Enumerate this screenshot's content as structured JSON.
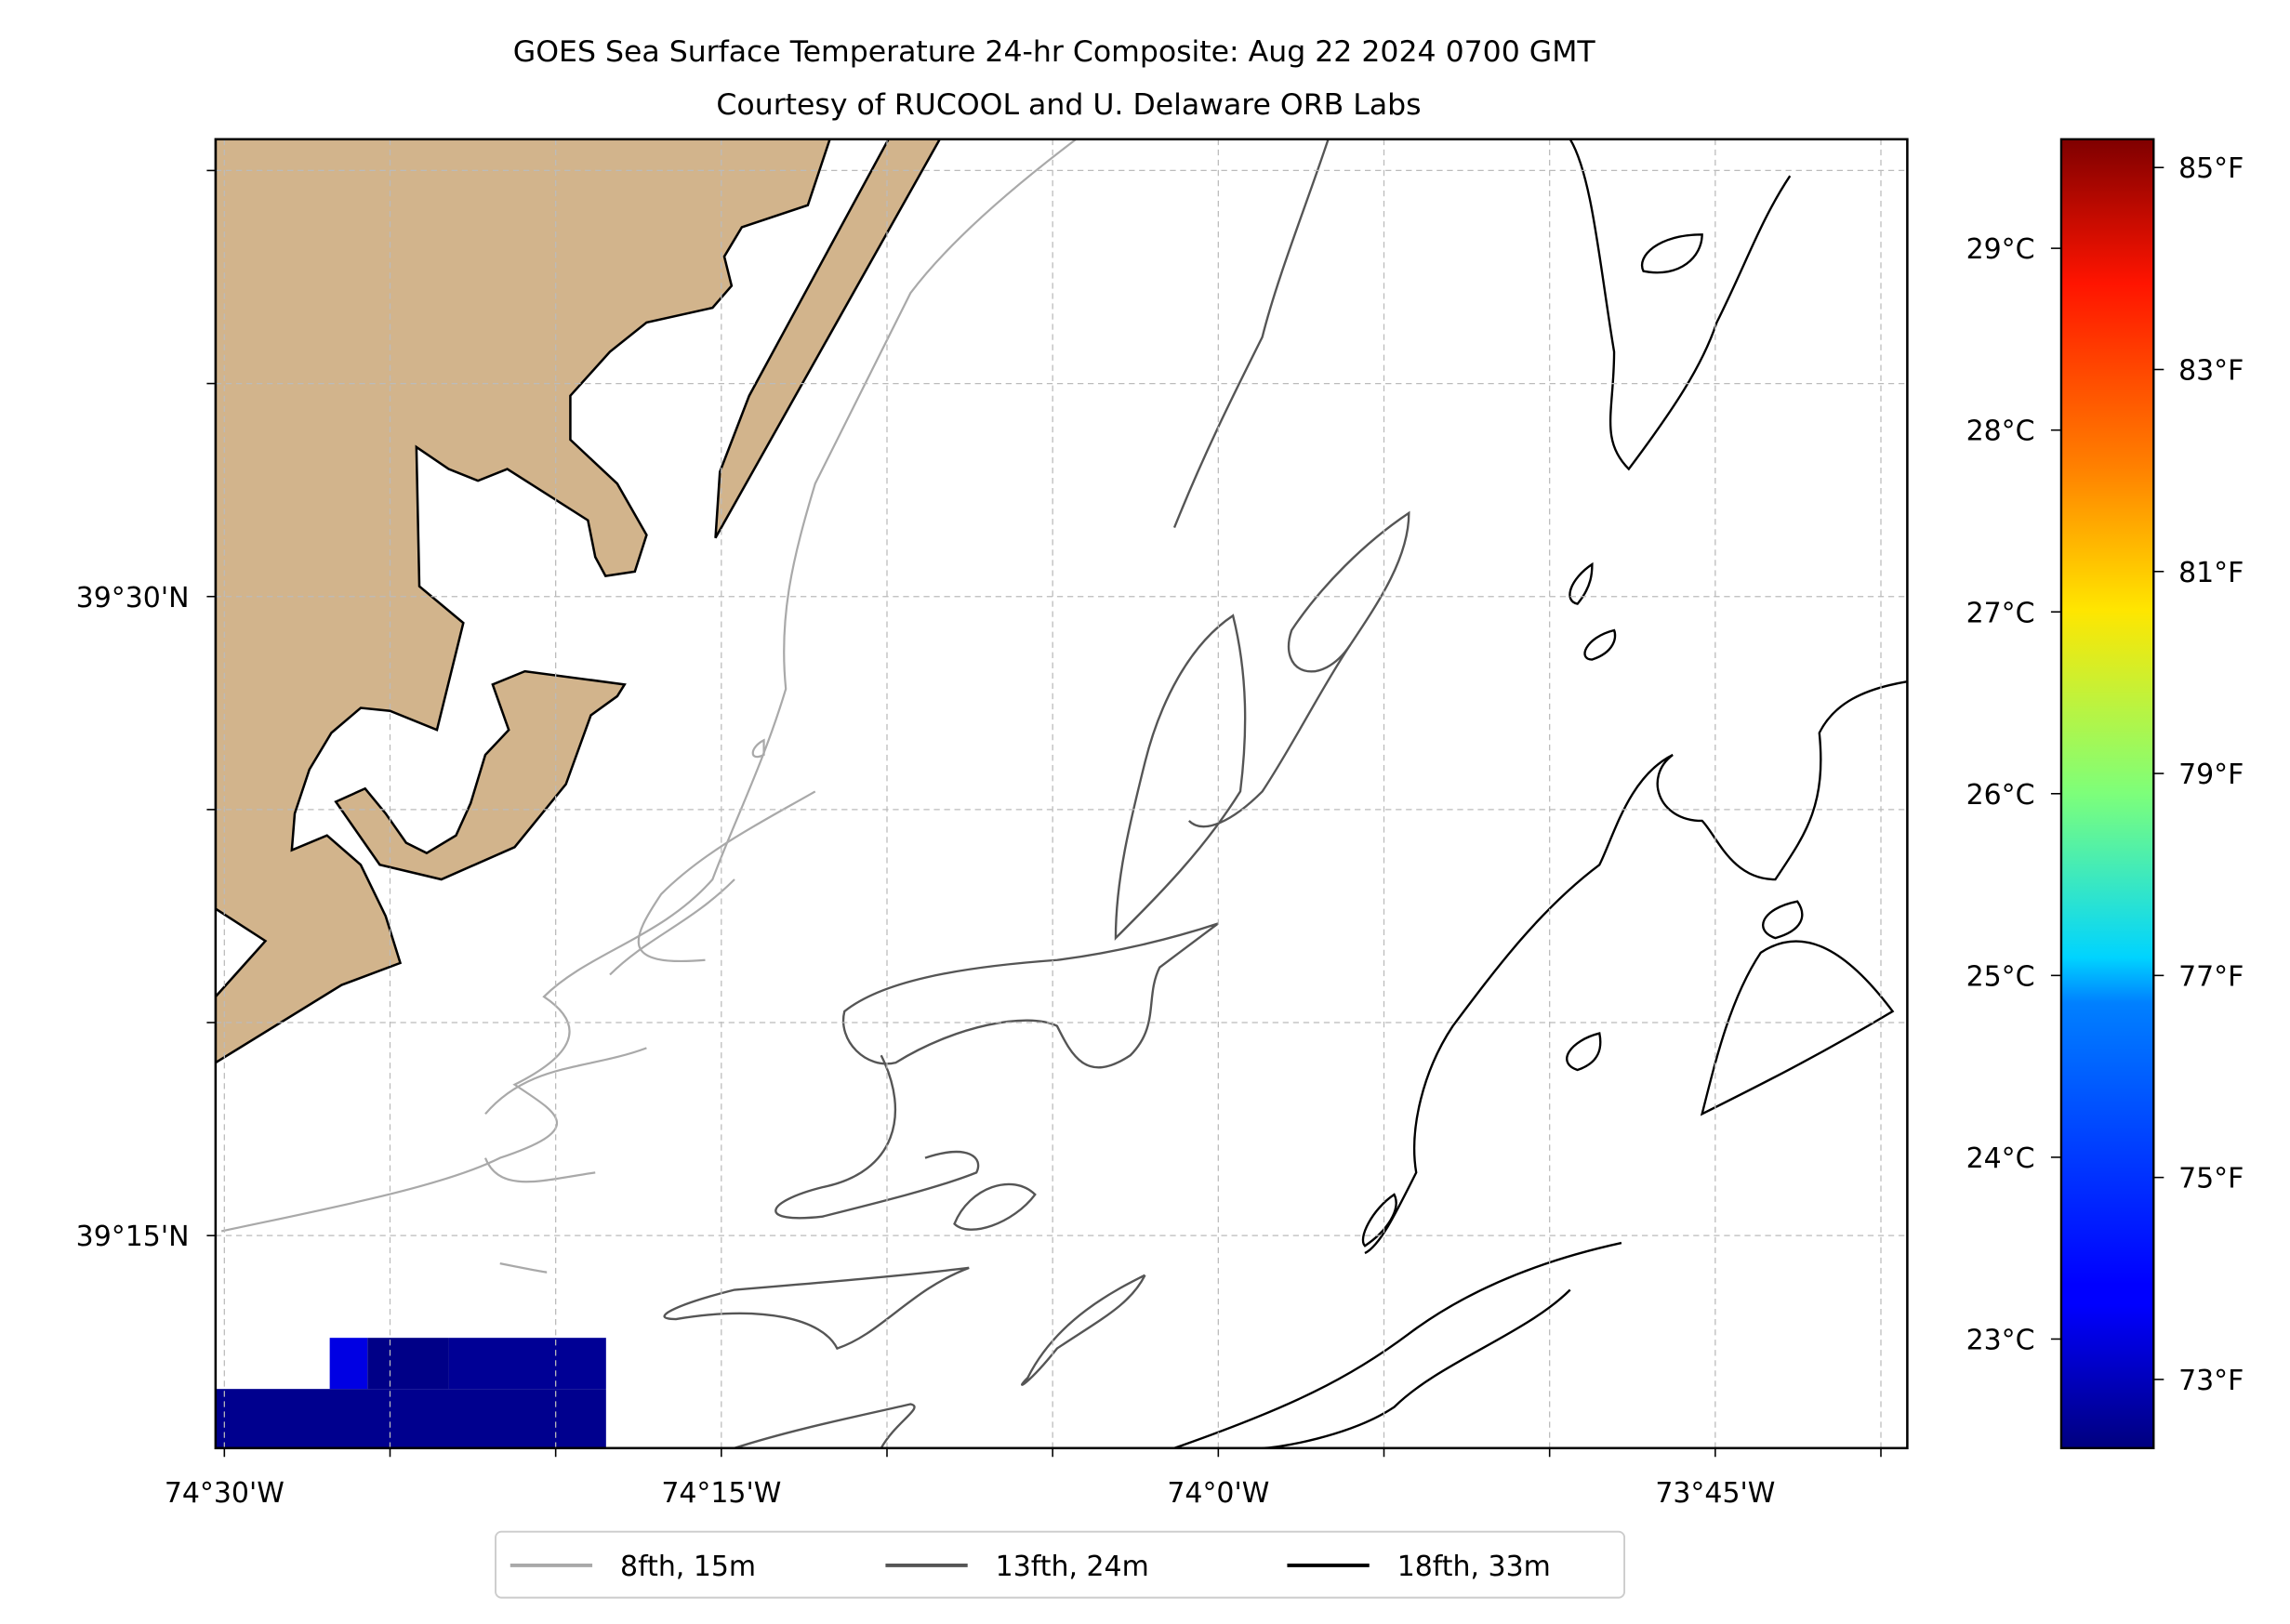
{
  "chart_data": {
    "type": "heatmap",
    "title": "GOES Sea Surface Temperature 24-hr Composite: Aug 22 2024 0700 GMT",
    "subtitle": "Courtesy of RUCOOL and U. Delaware ORB Labs",
    "xlabel": "",
    "ylabel": "",
    "xlim": [
      -74.504,
      -73.653
    ],
    "ylim": [
      39.167,
      39.679
    ],
    "grid": true,
    "x_ticks": [
      {
        "value": -74.5,
        "label": "74°30'W"
      },
      {
        "value": -74.25,
        "label": "74°15'W"
      },
      {
        "value": -74.0,
        "label": "74°0'W"
      },
      {
        "value": -73.75,
        "label": "73°45'W"
      }
    ],
    "y_ticks": [
      {
        "value": 39.5,
        "label": "39°30'N"
      },
      {
        "value": 39.25,
        "label": "39°15'N"
      }
    ],
    "colorbar": {
      "colormap": "jet",
      "range_c": [
        22.4,
        29.6
      ],
      "ticks_c": [
        {
          "value": 29,
          "label": "29°C"
        },
        {
          "value": 28,
          "label": "28°C"
        },
        {
          "value": 27,
          "label": "27°C"
        },
        {
          "value": 26,
          "label": "26°C"
        },
        {
          "value": 25,
          "label": "25°C"
        },
        {
          "value": 24,
          "label": "24°C"
        },
        {
          "value": 23,
          "label": "23°C"
        }
      ],
      "ticks_f": [
        {
          "value": 85,
          "label": "85°F"
        },
        {
          "value": 83,
          "label": "83°F"
        },
        {
          "value": 81,
          "label": "81°F"
        },
        {
          "value": 79,
          "label": "79°F"
        },
        {
          "value": 77,
          "label": "77°F"
        },
        {
          "value": 75,
          "label": "75°F"
        },
        {
          "value": 73,
          "label": "73°F"
        }
      ]
    },
    "sst_cells": [
      {
        "lon": [
          -74.504,
          -74.308
        ],
        "lat": [
          39.167,
          39.19
        ],
        "temp_c": 22.5
      },
      {
        "lon": [
          -74.447,
          -74.428
        ],
        "lat": [
          39.19,
          39.21
        ],
        "temp_c": 23.1
      },
      {
        "lon": [
          -74.428,
          -74.387
        ],
        "lat": [
          39.19,
          39.21
        ],
        "temp_c": 22.45
      },
      {
        "lon": [
          -74.387,
          -74.308
        ],
        "lat": [
          39.19,
          39.21
        ],
        "temp_c": 22.55
      }
    ],
    "legend": {
      "placement": "bottom-center",
      "entries": [
        {
          "label": "8fth, 15m",
          "color": "#a9a9a9"
        },
        {
          "label": "13fth, 24m",
          "color": "#555555"
        },
        {
          "label": "18fth, 33m",
          "color": "#000000"
        }
      ]
    },
    "land_color": "#d2b48c"
  }
}
